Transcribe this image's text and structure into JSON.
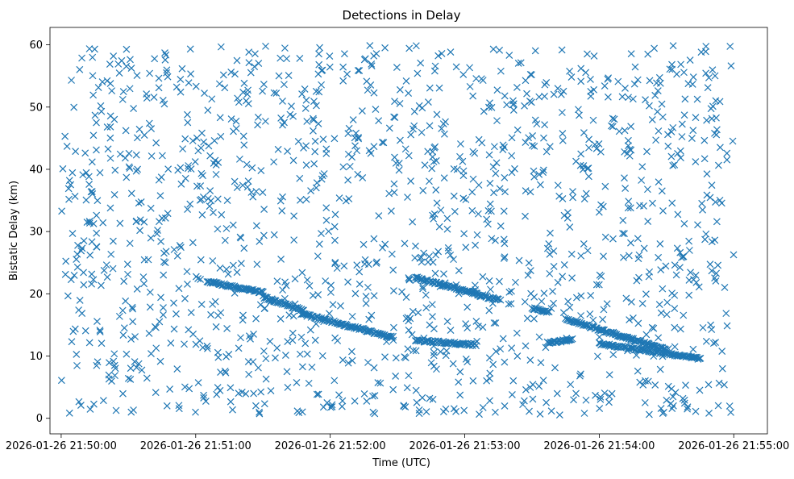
{
  "chart_data": {
    "type": "scatter",
    "title": "Detections in Delay",
    "xlabel": "Time (UTC)",
    "ylabel": "Bistatic Delay (km)",
    "marker": "x",
    "marker_color": "#1f77b4",
    "x_range": [
      "2026-01-26 21:49:55",
      "2026-01-26 21:55:15"
    ],
    "ylim": [
      -2.5,
      62.8
    ],
    "x_ticks": [
      "2026-01-26 21:50:00",
      "2026-01-26 21:51:00",
      "2026-01-26 21:52:00",
      "2026-01-26 21:53:00",
      "2026-01-26 21:54:00",
      "2026-01-26 21:55:00"
    ],
    "y_ticks": [
      0,
      10,
      20,
      30,
      40,
      50,
      60
    ],
    "grid": false,
    "legend": "none",
    "series": [
      {
        "clutter_scatter": {
          "x_range": [
            "2026-01-26 21:50:00",
            "2026-01-26 21:55:00"
          ],
          "y_range": [
            0.5,
            59.9
          ],
          "count": 1400,
          "distribution": "uniform"
        },
        "tracks": [
          {
            "x_start": "2026-01-26 21:51:05",
            "x_end": "2026-01-26 21:51:30",
            "y_start": 22.0,
            "y_end": 20.2
          },
          {
            "x_start": "2026-01-26 21:51:30",
            "x_end": "2026-01-26 21:51:48",
            "y_start": 19.5,
            "y_end": 17.3
          },
          {
            "x_start": "2026-01-26 21:51:47",
            "x_end": "2026-01-26 21:52:28",
            "y_start": 16.8,
            "y_end": 13.0
          },
          {
            "x_start": "2026-01-26 21:52:38",
            "x_end": "2026-01-26 21:53:15",
            "y_start": 22.6,
            "y_end": 19.0
          },
          {
            "x_start": "2026-01-26 21:52:38",
            "x_end": "2026-01-26 21:53:05",
            "y_start": 12.5,
            "y_end": 11.8
          },
          {
            "x_start": "2026-01-26 21:53:30",
            "x_end": "2026-01-26 21:53:37",
            "y_start": 17.7,
            "y_end": 17.1
          },
          {
            "x_start": "2026-01-26 21:53:37",
            "x_end": "2026-01-26 21:53:48",
            "y_start": 12.1,
            "y_end": 12.6
          },
          {
            "x_start": "2026-01-26 21:53:45",
            "x_end": "2026-01-26 21:54:30",
            "y_start": 15.9,
            "y_end": 11.0
          },
          {
            "x_start": "2026-01-26 21:54:00",
            "x_end": "2026-01-26 21:54:45",
            "y_start": 12.0,
            "y_end": 9.6
          }
        ]
      }
    ]
  }
}
